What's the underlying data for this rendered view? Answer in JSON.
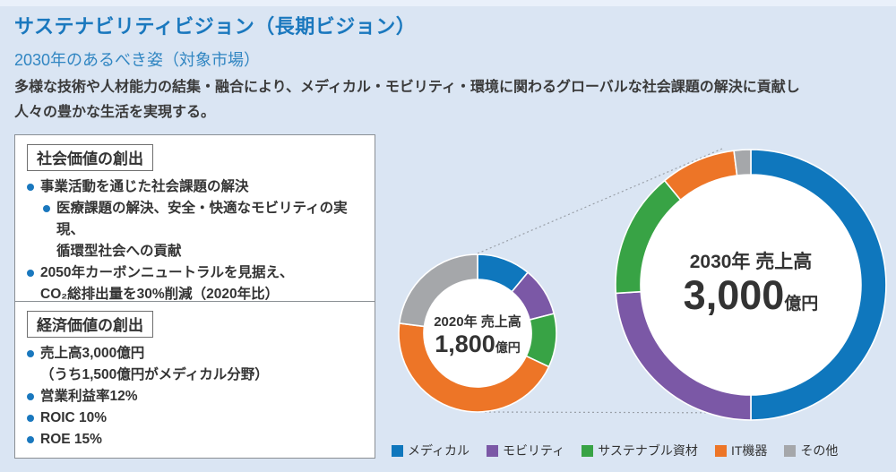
{
  "page": {
    "title": "サステナビリティビジョン（長期ビジョン）",
    "subtitle": "2030年のあるべき姿（対象市場）",
    "description_line1": "多様な技術や人材能力の結集・融合により、メディカル・モビリティ・環境に関わるグローバルな社会課題の解決に貢献し",
    "description_line2": "人々の豊かな生活を実現する。"
  },
  "social_box": {
    "heading": "社会価値の創出",
    "bullets": [
      {
        "indent": 0,
        "lines": [
          "事業活動を通じた社会課題の解決"
        ]
      },
      {
        "indent": 1,
        "lines": [
          "医療課題の解決、安全・快適なモビリティの実現、",
          "循環型社会への貢献"
        ]
      },
      {
        "indent": 0,
        "lines": [
          "2050年カーボンニュートラルを見据え、",
          "CO₂総排出量を30%削減（2020年比）"
        ]
      }
    ]
  },
  "economic_box": {
    "heading": "経済価値の創出",
    "bullets": [
      {
        "indent": 0,
        "lines": [
          "売上高3,000億円",
          "（うち1,500億円がメディカル分野）"
        ]
      },
      {
        "indent": 0,
        "lines": [
          "営業利益率12%"
        ]
      },
      {
        "indent": 0,
        "lines": [
          "ROIC 10%"
        ]
      },
      {
        "indent": 0,
        "lines": [
          "ROE 15%"
        ]
      }
    ]
  },
  "chart_data": {
    "type": "pie",
    "subtype": "donut",
    "legend_position": "bottom",
    "legend": [
      "メディカル",
      "モビリティ",
      "サステナブル資材",
      "IT機器",
      "その他"
    ],
    "colors": [
      "#0f77bd",
      "#7b58a6",
      "#38a345",
      "#ed7527",
      "#a5a7aa"
    ],
    "donuts": [
      {
        "name": "2020",
        "year_label": "2020年 売上高",
        "value": "1,800",
        "unit": "億円",
        "total": "1,800億円",
        "values_percent": [
          11,
          10,
          11,
          45,
          23
        ]
      },
      {
        "name": "2030",
        "year_label": "2030年 売上高",
        "value": "3,000",
        "unit": "億円",
        "total": "3,000億円",
        "values_percent": [
          50,
          24,
          15,
          9,
          2
        ]
      }
    ],
    "colors_meta": {
      "background": "#dae5f3",
      "title_blue": "#1a78be",
      "subtitle_blue": "#3186c2",
      "text_dark": "#333333",
      "connector_gray": "#9aa0a8"
    }
  }
}
